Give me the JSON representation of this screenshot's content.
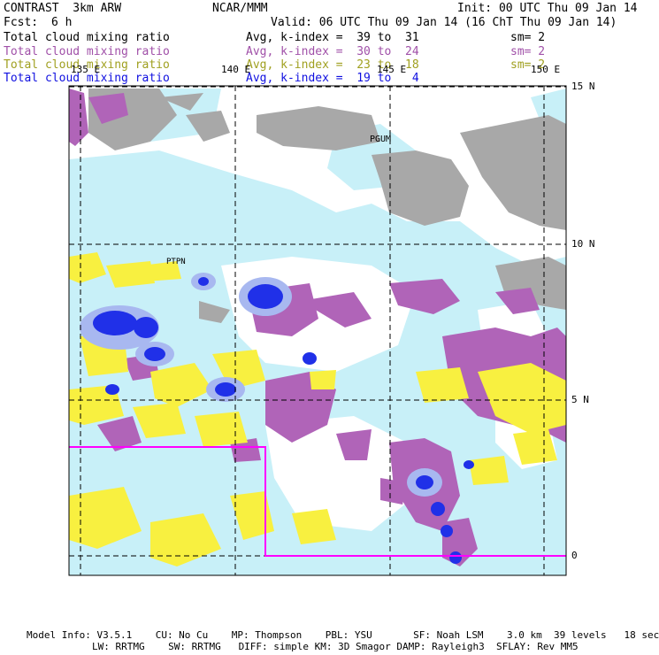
{
  "header": {
    "model": "CONTRAST  3km ARW",
    "org": "NCAR/MMM",
    "init": "Init: 00 UTC Thu 09 Jan 14",
    "fcst_label": "Fcst:",
    "fcst_value": "6 h",
    "valid": "Valid: 06 UTC Thu 09 Jan 14 (16 ChT Thu 09 Jan 14)"
  },
  "fields": [
    {
      "name": "Total cloud mixing ratio",
      "avg": "Avg, k-index =  39 to  31",
      "sm": "sm= 2",
      "color": "#000000"
    },
    {
      "name": "Total cloud mixing ratio",
      "avg": "Avg, k-index =  30 to  24",
      "sm": "sm= 2",
      "color": "#a050a8"
    },
    {
      "name": "Total cloud mixing ratio",
      "avg": "Avg, k-index =  23 to  18",
      "sm": "sm= 2",
      "color": "#a0a020"
    },
    {
      "name": "Total cloud mixing ratio",
      "avg": "Avg, k-index =  19 to   4",
      "sm": "",
      "color": "#1010e0"
    }
  ],
  "map": {
    "lon_labels": [
      "135 E",
      "140 E",
      "145 E",
      "150 E"
    ],
    "lat_labels": [
      "15 N",
      "10 N",
      "5 N",
      "0"
    ],
    "places": [
      "PGUM",
      "PTPN"
    ],
    "colors": {
      "gray": "#a8a8a8",
      "lightblue": "#c8f0f8",
      "violet": "#b064b8",
      "yellow": "#f8f040",
      "blue": "#2030e8",
      "boundary": "#ff00ff"
    }
  },
  "footer": {
    "line1": "Model Info: V3.5.1    CU: No Cu    MP: Thompson    PBL: YSU       SF: Noah LSM    3.0 km  39 levels   18 sec",
    "line2": "LW: RRTMG    SW: RRTMG   DIFF: simple KM: 3D Smagor DAMP: Rayleigh3  SFLAY: Rev MM5"
  }
}
